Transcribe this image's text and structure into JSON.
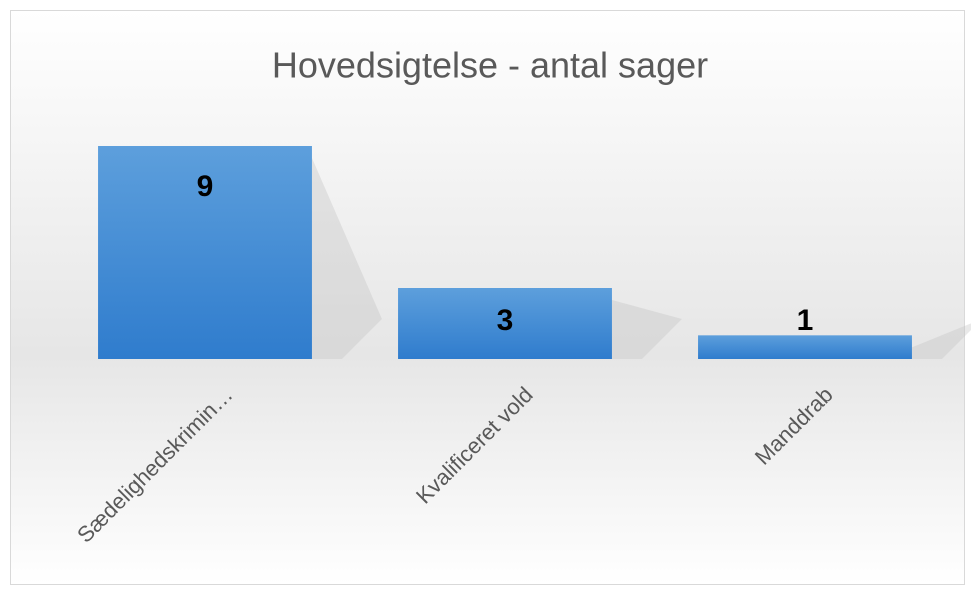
{
  "chart_data": {
    "type": "bar",
    "title": "Hovedsigtelse - antal sager",
    "categories": [
      "Sædelighedskrimin…",
      "Kvalificeret vold",
      "Manddrab"
    ],
    "values": [
      9,
      3,
      1
    ],
    "color": "#4a90d9",
    "ylim": [
      0,
      9
    ]
  }
}
